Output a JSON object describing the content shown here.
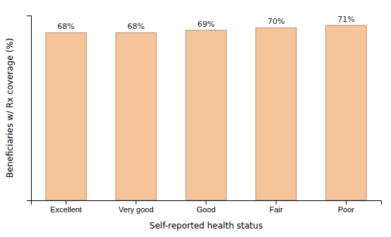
{
  "chart_data": {
    "type": "bar",
    "categories": [
      "Excellent",
      "Very good",
      "Good",
      "Fair",
      "Poor"
    ],
    "values": [
      68,
      68,
      69,
      70,
      71
    ],
    "value_labels": [
      "68%",
      "68%",
      "69%",
      "70%",
      "71%"
    ],
    "data_labels": true,
    "color": "#F5C49A",
    "xlabel": "Self-reported health status",
    "ylabel": "Beneficiaries w/ Rx coverage (%)",
    "ylim": [
      0,
      75
    ],
    "tick_labels": "x"
  }
}
